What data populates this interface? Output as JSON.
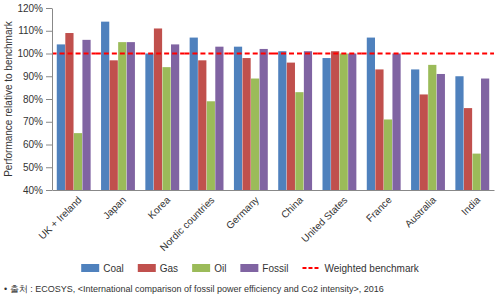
{
  "chart_data": {
    "type": "bar",
    "y_label": "Performance relative to benchmark",
    "source": "• 출처 : ECOSYS, <International comparison of fossil power efficiency and Co2 intensity>, 2016",
    "categories": [
      "UK + Ireland",
      "Japan",
      "Korea",
      "Nordic countries",
      "Germany",
      "China",
      "United States",
      "France",
      "Australia",
      "India"
    ],
    "series": [
      {
        "name": "Coal",
        "color": "#4f81bd",
        "values": [
          104,
          114,
          100,
          107,
          103,
          101,
          98,
          107,
          93,
          90
        ]
      },
      {
        "name": "Gas",
        "color": "#c0504d",
        "values": [
          109,
          97,
          111,
          97,
          98,
          96,
          101,
          93,
          82,
          76
        ]
      },
      {
        "name": "Oil",
        "color": "#9bbb59",
        "values": [
          65,
          105,
          94,
          79,
          89,
          83,
          100,
          71,
          95,
          56
        ]
      },
      {
        "name": "Fossil",
        "color": "#8064a2",
        "values": [
          106,
          105,
          104,
          103,
          102,
          101,
          100,
          100,
          91,
          89
        ]
      },
      {
        "name": "Weighted benchmark",
        "type": "line",
        "line_style": "dashed",
        "color": "#ff0000",
        "values": [
          100,
          100,
          100,
          100,
          100,
          100,
          100,
          100,
          100,
          100
        ]
      }
    ],
    "ylim": [
      40,
      120
    ],
    "yticks": [
      {
        "value": 40,
        "label": "40%"
      },
      {
        "value": 50,
        "label": "50%"
      },
      {
        "value": 60,
        "label": "60%"
      },
      {
        "value": 70,
        "label": "70%"
      },
      {
        "value": 80,
        "label": "80%"
      },
      {
        "value": 90,
        "label": "90%"
      },
      {
        "value": 100,
        "label": "100%"
      },
      {
        "value": 110,
        "label": "110%"
      },
      {
        "value": 120,
        "label": "120%"
      }
    ],
    "grid": false,
    "legend": "bottom"
  }
}
